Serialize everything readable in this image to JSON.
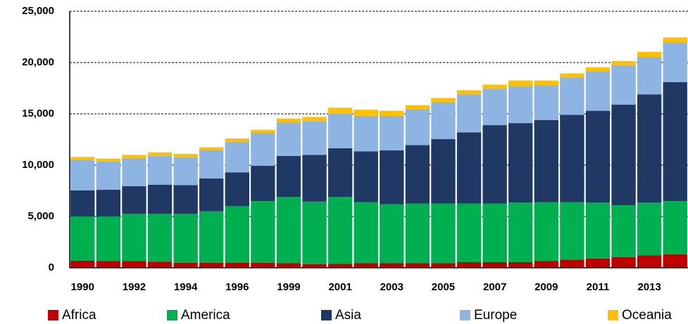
{
  "chart_data": {
    "type": "stacked_bar",
    "categories": [
      "1990",
      null,
      "1992",
      null,
      "1994",
      null,
      "1996",
      null,
      "1999",
      null,
      "2001",
      null,
      "2003",
      null,
      "2005",
      null,
      "2007",
      null,
      "2009",
      null,
      "2011",
      null,
      "2013",
      null
    ],
    "series": [
      {
        "name": "Africa",
        "color": "#c00000",
        "values": [
          700,
          650,
          650,
          600,
          500,
          500,
          500,
          500,
          450,
          350,
          400,
          450,
          450,
          450,
          450,
          550,
          550,
          550,
          650,
          800,
          900,
          1050,
          1200,
          1300
        ]
      },
      {
        "name": "America",
        "color": "#00b050",
        "values": [
          4300,
          4350,
          4600,
          4650,
          4750,
          5000,
          5500,
          6000,
          6450,
          6100,
          6500,
          5950,
          5750,
          5800,
          5800,
          5700,
          5700,
          5800,
          5750,
          5600,
          5450,
          5050,
          5150,
          5200
        ]
      },
      {
        "name": "Asia",
        "color": "#1f3864",
        "values": [
          2550,
          2600,
          2700,
          2850,
          2800,
          3200,
          3300,
          3450,
          4000,
          4550,
          4750,
          4950,
          5250,
          5700,
          6300,
          6950,
          7650,
          7750,
          8000,
          8500,
          8950,
          9800,
          10550,
          11600
        ]
      },
      {
        "name": "Europe",
        "color": "#8eb4e3",
        "values": [
          2950,
          2750,
          2750,
          2800,
          2700,
          2800,
          2950,
          3200,
          3250,
          3300,
          3400,
          3450,
          3350,
          3500,
          3600,
          3700,
          3550,
          3600,
          3400,
          3650,
          3850,
          3850,
          3650,
          3850
        ]
      },
      {
        "name": "Oceania",
        "color": "#ffc000",
        "values": [
          300,
          300,
          300,
          350,
          350,
          250,
          350,
          300,
          400,
          400,
          550,
          600,
          500,
          400,
          400,
          400,
          400,
          550,
          450,
          400,
          400,
          400,
          500,
          500
        ]
      }
    ],
    "ylim": [
      0,
      25000
    ],
    "yticks": [
      0,
      {
        "value": 5000,
        "label": "5,000"
      },
      {
        "value": 10000,
        "label": "10,000"
      },
      {
        "value": 15000,
        "label": "15,000"
      },
      {
        "value": 20000,
        "label": "20,000"
      },
      {
        "value": 25000,
        "label": "25,000"
      }
    ],
    "grid": true,
    "legend": "bottom"
  }
}
